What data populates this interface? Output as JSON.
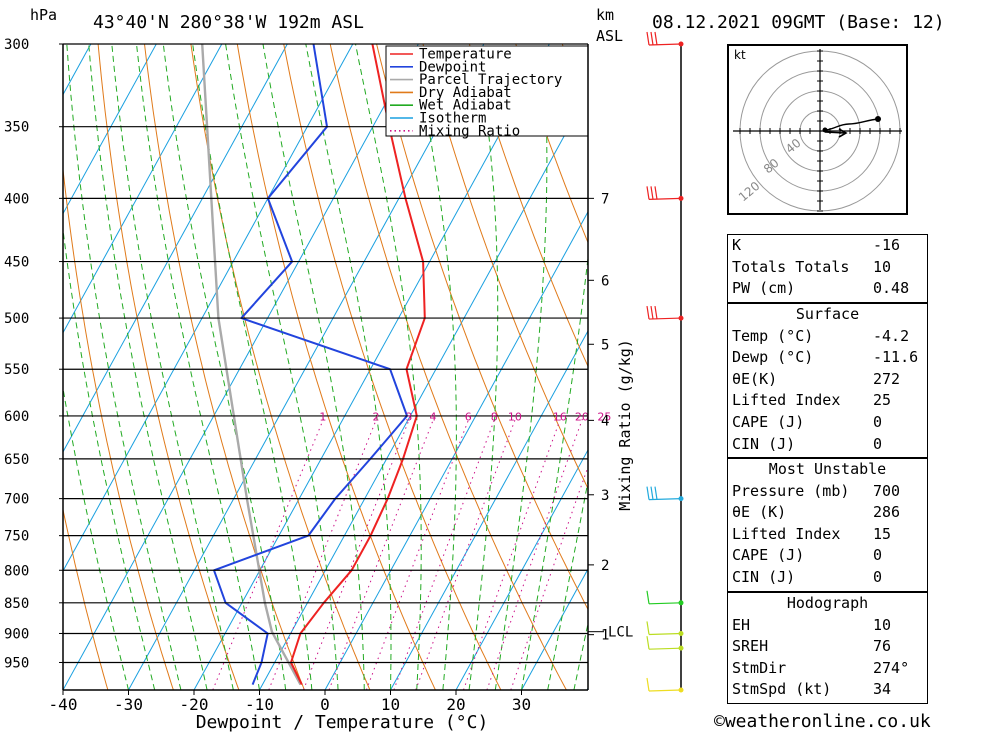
{
  "header": {
    "pressure_unit": "hPa",
    "location": "43°40'N  280°38'W  192m  ASL",
    "km_label": "km",
    "asl_label": "ASL",
    "datetime": "08.12.2021  09GMT  (Base: 12)"
  },
  "chart_data": {
    "type": "line",
    "subtype": "skew-T log-P diagram",
    "xlabel": "Dewpoint / Temperature (°C)",
    "ylabel": "hPa",
    "x_ticks": [
      -40,
      -30,
      -20,
      -10,
      0,
      10,
      20,
      30
    ],
    "pressure_ticks": [
      300,
      350,
      400,
      450,
      500,
      550,
      600,
      650,
      700,
      750,
      800,
      850,
      900,
      950
    ],
    "ylim": [
      1000,
      300
    ],
    "xlim": [
      -40,
      40
    ],
    "grid": true,
    "legend_position": "top-right",
    "legend": [
      "Temperature",
      "Dewpoint",
      "Parcel Trajectory",
      "Dry Adiabat",
      "Wet Adiabat",
      "Isotherm",
      "Mixing Ratio"
    ],
    "colors": {
      "temperature": "#ee2222",
      "dewpoint": "#2244dd",
      "parcel": "#aaaaaa",
      "dry_adiabat": "#e07a1a",
      "wet_adiabat": "#22aa22",
      "isotherm": "#1aa0e0",
      "mixing_ratio": "#cc1188"
    },
    "height_km_label": "km ASL",
    "height_ticks": [
      {
        "km": "7",
        "p": 400
      },
      {
        "km": "6",
        "p": 466
      },
      {
        "km": "5",
        "p": 525
      },
      {
        "km": "4",
        "p": 605
      },
      {
        "km": "3",
        "p": 695
      },
      {
        "km": "2",
        "p": 792
      },
      {
        "km": "1",
        "p": 902
      }
    ],
    "lcl_label": "LCL",
    "lcl_pressure": 897,
    "mixing_ratio_label": "Mixing Ratio (g/kg)",
    "mixing_ratio_lines": [
      "1",
      "2",
      "3",
      "4",
      "6",
      "8",
      "10",
      "16",
      "20",
      "25"
    ],
    "series": [
      {
        "name": "Temperature",
        "points": [
          {
            "p": 990,
            "t": -4.0
          },
          {
            "p": 950,
            "t": -7.5
          },
          {
            "p": 900,
            "t": -8.5
          },
          {
            "p": 850,
            "t": -7.5
          },
          {
            "p": 800,
            "t": -6.0
          },
          {
            "p": 750,
            "t": -6.0
          },
          {
            "p": 700,
            "t": -6.5
          },
          {
            "p": 650,
            "t": -7.5
          },
          {
            "p": 600,
            "t": -9.0
          },
          {
            "p": 550,
            "t": -14.5
          },
          {
            "p": 500,
            "t": -16.0
          },
          {
            "p": 450,
            "t": -21.0
          },
          {
            "p": 400,
            "t": -29.0
          },
          {
            "p": 350,
            "t": -37.5
          },
          {
            "p": 300,
            "t": -47.0
          }
        ]
      },
      {
        "name": "Dewpoint",
        "points": [
          {
            "p": 990,
            "t": -11.5
          },
          {
            "p": 950,
            "t": -12.0
          },
          {
            "p": 900,
            "t": -13.5
          },
          {
            "p": 850,
            "t": -22.5
          },
          {
            "p": 800,
            "t": -27.0
          },
          {
            "p": 750,
            "t": -15.5
          },
          {
            "p": 700,
            "t": -14.5
          },
          {
            "p": 650,
            "t": -12.5
          },
          {
            "p": 600,
            "t": -10.5
          },
          {
            "p": 550,
            "t": -17.0
          },
          {
            "p": 500,
            "t": -44.0
          },
          {
            "p": 450,
            "t": -41.0
          },
          {
            "p": 400,
            "t": -50.0
          },
          {
            "p": 350,
            "t": -47.0
          },
          {
            "p": 300,
            "t": -56.0
          }
        ]
      },
      {
        "name": "Parcel Trajectory",
        "points": [
          {
            "p": 990,
            "t": -4.2
          },
          {
            "p": 897,
            "t": -13.0
          },
          {
            "p": 850,
            "t": -16.5
          },
          {
            "p": 700,
            "t": -28.0
          },
          {
            "p": 500,
            "t": -47.5
          },
          {
            "p": 300,
            "t": -73.0
          }
        ]
      }
    ],
    "wind_barbs": [
      {
        "p": 300,
        "color": "#ee2222"
      },
      {
        "p": 400,
        "color": "#ee2222"
      },
      {
        "p": 500,
        "color": "#ee2222"
      },
      {
        "p": 700,
        "color": "#22aadd"
      },
      {
        "p": 850,
        "color": "#22cc22"
      },
      {
        "p": 900,
        "color": "#bbdd22"
      },
      {
        "p": 925,
        "color": "#bbdd22"
      },
      {
        "p": 1000,
        "color": "#eedd22"
      }
    ]
  },
  "hodograph": {
    "unit": "kt",
    "ring_labels": [
      "40",
      "80",
      "120"
    ]
  },
  "indices": {
    "k_label": "K",
    "k_value": "-16",
    "tt_label": "Totals Totals",
    "tt_value": "10",
    "pw_label": "PW (cm)",
    "pw_value": "0.48"
  },
  "surface": {
    "title": "Surface",
    "rows": [
      {
        "label": "Temp (°C)",
        "value": "-4.2"
      },
      {
        "label": "Dewp (°C)",
        "value": "-11.6"
      },
      {
        "label": "θE(K)",
        "value": "272"
      },
      {
        "label": "Lifted Index",
        "value": "25"
      },
      {
        "label": "CAPE (J)",
        "value": "0"
      },
      {
        "label": "CIN (J)",
        "value": "0"
      }
    ]
  },
  "most_unstable": {
    "title": "Most Unstable",
    "rows": [
      {
        "label": "Pressure (mb)",
        "value": "700"
      },
      {
        "label": "θE (K)",
        "value": "286"
      },
      {
        "label": "Lifted Index",
        "value": "15"
      },
      {
        "label": "CAPE (J)",
        "value": "0"
      },
      {
        "label": "CIN (J)",
        "value": "0"
      }
    ]
  },
  "hodograph_table": {
    "title": "Hodograph",
    "rows": [
      {
        "label": "EH",
        "value": "10"
      },
      {
        "label": "SREH",
        "value": "76"
      },
      {
        "label": "StmDir",
        "value": "274°"
      },
      {
        "label": "StmSpd (kt)",
        "value": "34"
      }
    ]
  },
  "copyright": "©weatheronline.co.uk"
}
